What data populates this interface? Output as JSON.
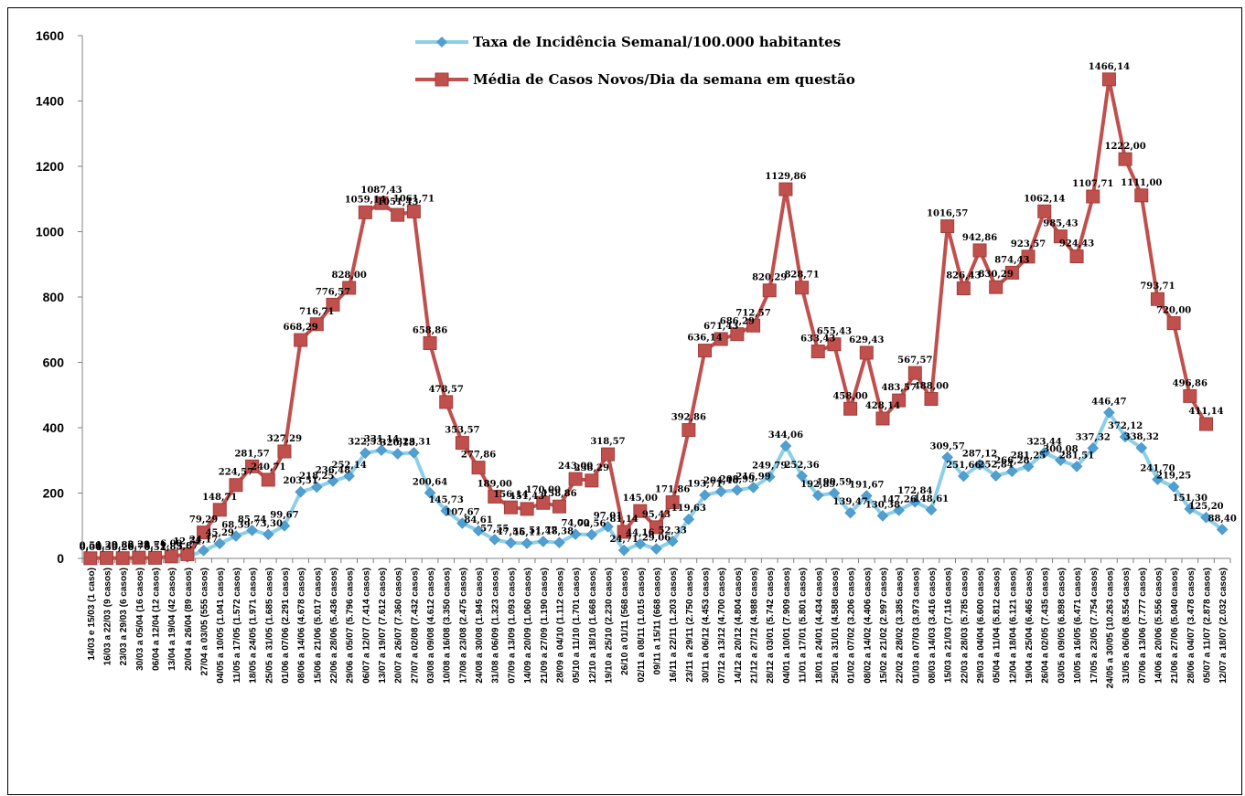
{
  "chart_data": {
    "type": "line",
    "title": "",
    "xlabel": "",
    "ylabel": "",
    "ylim": [
      0,
      1600
    ],
    "yticks": [
      "0",
      "200",
      "400",
      "600",
      "800",
      "1000",
      "1200",
      "1400",
      "1600"
    ],
    "grid": false,
    "legend_position": "top",
    "categories": [
      "14/03 e 15/03 (1 caso)",
      "16/03 a 22/03 (9 casos)",
      "23/03 a 29/03 (6 casos)",
      "30/03 a 05/04 (16 casos)",
      "06/04 a 12/04 (12 casos)",
      "13/04 a 19/04 (42 casos)",
      "20/04 a 26/04 (89 casos)",
      "27/04 a 03/05 (555 casos)",
      "04/05 a 10/05 (1.041 casos)",
      "11/05 a 17/05 (1.572 casos)",
      "18/05 a 24/05 (1.971 casos)",
      "25/05 a 31/05 (1.685 casos)",
      "01/06 a 07/06 (2.291 casos)",
      "08/06 a 14/06 (4.678 casos)",
      "15/06 a 21/06 (5.017 casos)",
      "22/06 a 28/06 (5.436 casos)",
      "29/06 a 05/07 (5.796 casos)",
      "06/07 a 12/07 (7.414 casos)",
      "13/07 a 19/07 (7.612 casos)",
      "20/07 a 26/07 (7.360 casos)",
      "27/07 a 02/08 (7.432 casos)",
      "03/08 a 09/08 (4.612 casos)",
      "10/08 a 16/08 (3.350 casos)",
      "17/08 a 23/08 (2.475 casos)",
      "24/08 a 30/08 (1.945 casos)",
      "31/08 a 06/09 (1.323 casos)",
      "07/09 a 13/09 (1.093 casos)",
      "14/09 a 20/09 (1.060 casos)",
      "21/09 a 27/09 (1.190 casos)",
      "28/09 a 04/10 (1.112 casos)",
      "05/10 a 11/10 (1.701 casos)",
      "12/10 a 18/10 (1.668 casos)",
      "19/10 a 25/10 (2.230 casos)",
      "26/10 a 01/11 (568 casos)",
      "02/11 a 08/11 (1.015 casos)",
      "09/11 a 15/11 (668 casos)",
      "16/11 a 22/11 (1.203 casos)",
      "23/11 a 29/11 (2.750 casos)",
      "30/11 a 06/12 (4.453 casos)",
      "07/12 a 13/12 (4.700 casos)",
      "14/12 a 20/12 (4.804 casos)",
      "21/12 a 27/12 (4.988 casos)",
      "28/12 a 03/01 (5.742 casos)",
      "04/01 a 10/01 (7.909 casos)",
      "11/01 a 17/01 (5.801 casos)",
      "18/01 a 24/01 (4.434 casos)",
      "25/01 a 31/01 (4.588 casos)",
      "01/02 a 07/02 (3.206 casos)",
      "08/02 a 14/02 (4.406 casos)",
      "15/02 a 21/02 (2.997 casos)",
      "22/02 a 28/02 (3.385 casos)",
      "01/03 a 07/03 (3.973 casos)",
      "08/03 a 14/03 (3.416 casos)",
      "15/03 a 21/03 (7.116 casos)",
      "22/03 a 28/03 (5.785 casos)",
      "29/03 a 04/04 (6.600 casos)",
      "05/04 a 11/04 (5.812 casos)",
      "12/04 a 18/04 (6.121 casos)",
      "19/04 a 25/04 (6.465 casos)",
      "26/04 a 02/05 (7.435 casos)",
      "03/05 a 09/05 (6.898 casos)",
      "10/05 a 16/05 (6.471 casos)",
      "17/05 a 23/05 (7.754 casos)",
      "24/05 a 30/05 (10.263 casos)",
      "31/05 a 06/06 (8.554 casos)",
      "07/06 a 13/06 (7.777 casos)",
      "14/06 a 20/06 (5.556 casos)",
      "21/06 a 27/06 (5.040 casos)",
      "28/06 a 04/07 (3.478 casos)",
      "05/07 a 11/07 (2.878 casos)",
      "12/07 a 18/07 (2.032 casos)"
    ],
    "series": [
      {
        "name": "Taxa de Incidência Semanal/100.000 habitantes",
        "color": "#8ecfe8",
        "marker": "diamond",
        "values": [
          0.04,
          0.39,
          0.26,
          0.7,
          0.52,
          1.83,
          3.87,
          24.17,
          45.29,
          68.39,
          85.74,
          73.3,
          99.67,
          203.51,
          218.25,
          236.48,
          252.14,
          322.53,
          331.14,
          320.18,
          323.31,
          200.64,
          145.73,
          107.67,
          84.61,
          57.55,
          47.55,
          46.11,
          51.77,
          48.38,
          74.0,
          72.56,
          97.01,
          24.71,
          44.16,
          29.06,
          52.33,
          119.63,
          193.71,
          204.46,
          208.99,
          216.99,
          249.79,
          344.06,
          252.36,
          192.89,
          199.59,
          139.47,
          191.67,
          130.38,
          147.26,
          172.84,
          148.61,
          309.57,
          251.66,
          287.12,
          252.84,
          266.28,
          281.25,
          323.44,
          300.08,
          281.51,
          337.32,
          446.47,
          372.12,
          338.32,
          241.7,
          219.25,
          151.3,
          125.2,
          88.4
        ],
        "labels": [
          "0,04",
          "0,39",
          "0,26",
          "0,70",
          "0,52",
          "1,83",
          "3,87",
          "24,17",
          "45,29",
          "68,39",
          "85,74",
          "73,30",
          "99,67",
          "203,51",
          "218,25",
          "236,48",
          "252,14",
          "322,53",
          "331,14",
          "320,18",
          "323,31",
          "200,64",
          "145,73",
          "107,67",
          "84,61",
          "57,55",
          "47,55",
          "46,11",
          "51,77",
          "48,38",
          "74,00",
          "72,56",
          "97,01",
          "24,71",
          "44,16",
          "29,06",
          "52,33",
          "119,63",
          "193,71",
          "204,46",
          "208,99",
          "216,99",
          "249,79",
          "344,06",
          "252,36",
          "192,89",
          "199,59",
          "139,47",
          "191,67",
          "130,38",
          "147,26",
          "172,84",
          "148,61",
          "309,57",
          "251,66",
          "287,12",
          "252,84",
          "266,28",
          "281,25",
          "323,44",
          "300,08",
          "281,51",
          "337,32",
          "446,47",
          "372,12",
          "338,32",
          "241,70",
          "219,25",
          "151,30",
          "125,20",
          "88,40"
        ]
      },
      {
        "name": "Média de Casos Novos/Dia da semana em questão",
        "color": "#c0504d",
        "marker": "square",
        "values": [
          0.5,
          1.29,
          0.86,
          2.29,
          1.71,
          6.0,
          12.71,
          79.29,
          148.71,
          224.57,
          281.57,
          240.71,
          327.29,
          668.29,
          716.71,
          776.57,
          828.0,
          1059.14,
          1087.43,
          1051.43,
          1061.71,
          658.86,
          478.57,
          353.57,
          277.86,
          189.0,
          156.14,
          151.43,
          170.0,
          158.86,
          243.0,
          238.29,
          318.57,
          81.14,
          145.0,
          95.43,
          171.86,
          392.86,
          636.14,
          671.43,
          686.29,
          712.57,
          820.29,
          1129.86,
          828.71,
          633.43,
          655.43,
          458.0,
          629.43,
          428.14,
          483.57,
          567.57,
          488.0,
          1016.57,
          826.43,
          942.86,
          830.29,
          874.43,
          923.57,
          1062.14,
          985.43,
          924.43,
          1107.71,
          1466.14,
          1222.0,
          1111.0,
          793.71,
          720.0,
          496.86,
          411.14,
          null
        ],
        "labels": [
          "0,50",
          "1,29",
          "0,86",
          "2,29",
          "1,71",
          "6,00",
          "12,71",
          "79,29",
          "148,71",
          "224,57",
          "281,57",
          "240,71",
          "327,29",
          "668,29",
          "716,71",
          "776,57",
          "828,00",
          "1059,14",
          "1087,43",
          "1051,43",
          "1061,71",
          "658,86",
          "478,57",
          "353,57",
          "277,86",
          "189,00",
          "156,14",
          "151,43",
          "170,00",
          "158,86",
          "243,00",
          "238,29",
          "318,57",
          "81,14",
          "145,00",
          "95,43",
          "171,86",
          "392,86",
          "636,14",
          "671,43",
          "686,29",
          "712,57",
          "820,29",
          "1129,86",
          "828,71",
          "633,43",
          "655,43",
          "458,00",
          "629,43",
          "428,14",
          "483,57",
          "567,57",
          "488,00",
          "1016,57",
          "826,43",
          "942,86",
          "830,29",
          "874,43",
          "923,57",
          "1062,14",
          "985,43",
          "924,43",
          "1107,71",
          "1466,14",
          "1222,00",
          "1111,00",
          "793,71",
          "720,00",
          "496,86",
          "411,14",
          ""
        ]
      }
    ]
  }
}
